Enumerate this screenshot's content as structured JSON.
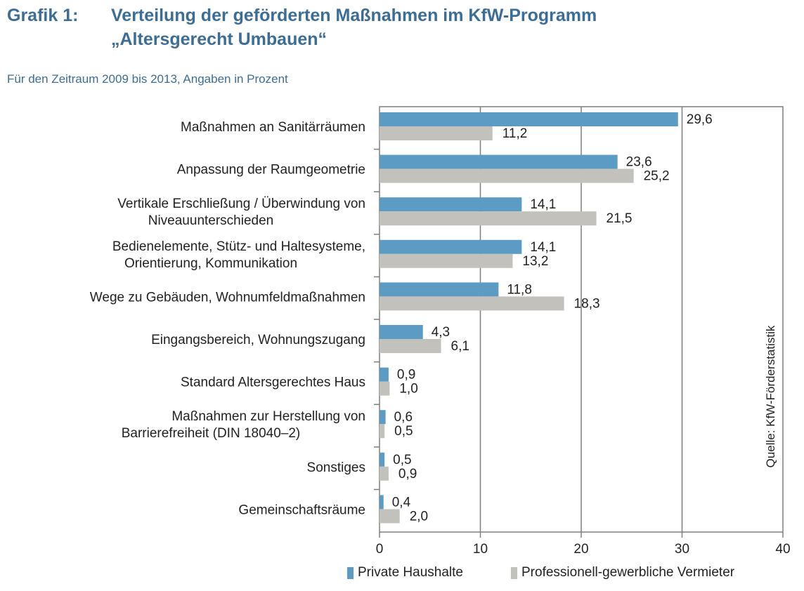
{
  "header": {
    "label": "Grafik 1:",
    "title_line1": "Verteilung der geförderten Maßnahmen im KfW-Programm",
    "title_line2": "„Altersgerecht Umbauen“",
    "subtitle": "Für den Zeitraum 2009 bis 2013, Angaben in Prozent"
  },
  "colors": {
    "private": "#5b9bc4",
    "professional": "#c2c1bb",
    "title": "#3b6d96",
    "grid": "#7f7f7f"
  },
  "chart_data": {
    "type": "bar",
    "orientation": "horizontal",
    "categories": [
      [
        "Maßnahmen an Sanitärräumen"
      ],
      [
        "Anpassung der Raumgeometrie"
      ],
      [
        "Vertikale Erschließung / Überwindung von",
        "Niveauunterschieden"
      ],
      [
        "Bedienelemente, Stütz- und Haltesysteme,",
        "Orientierung, Kommunikation"
      ],
      [
        "Wege zu Gebäuden, Wohnumfeldmaßnahmen"
      ],
      [
        "Eingangsbereich, Wohnungszugang"
      ],
      [
        "Standard Altersgerechtes Haus"
      ],
      [
        "Maßnahmen zur Herstellung von",
        "Barrierefreiheit (DIN 18040–2)"
      ],
      [
        "Sonstiges"
      ],
      [
        "Gemeinschaftsräume"
      ]
    ],
    "series": [
      {
        "name": "Private Haushalte",
        "values": [
          29.6,
          23.6,
          14.1,
          14.1,
          11.8,
          4.3,
          0.9,
          0.6,
          0.5,
          0.4
        ],
        "labels": [
          "29,6",
          "23,6",
          "14,1",
          "14,1",
          "11,8",
          "4,3",
          "0,9",
          "0,6",
          "0,5",
          "0,4"
        ]
      },
      {
        "name": "Professionell-gewerbliche Vermieter",
        "values": [
          11.2,
          25.2,
          21.5,
          13.2,
          18.3,
          6.1,
          1.0,
          0.5,
          0.9,
          2.0
        ],
        "labels": [
          "11,2",
          "25,2",
          "21,5",
          "13,2",
          "18,3",
          "6,1",
          "1,0",
          "0,5",
          "0,9",
          "2,0"
        ]
      }
    ],
    "xlim": [
      0,
      40
    ],
    "xticks": [
      "0",
      "10",
      "20",
      "30",
      "40"
    ],
    "grid": "vertical",
    "legend": "bottom",
    "source_note": "Quelle: KfW-Förderstatistik"
  }
}
